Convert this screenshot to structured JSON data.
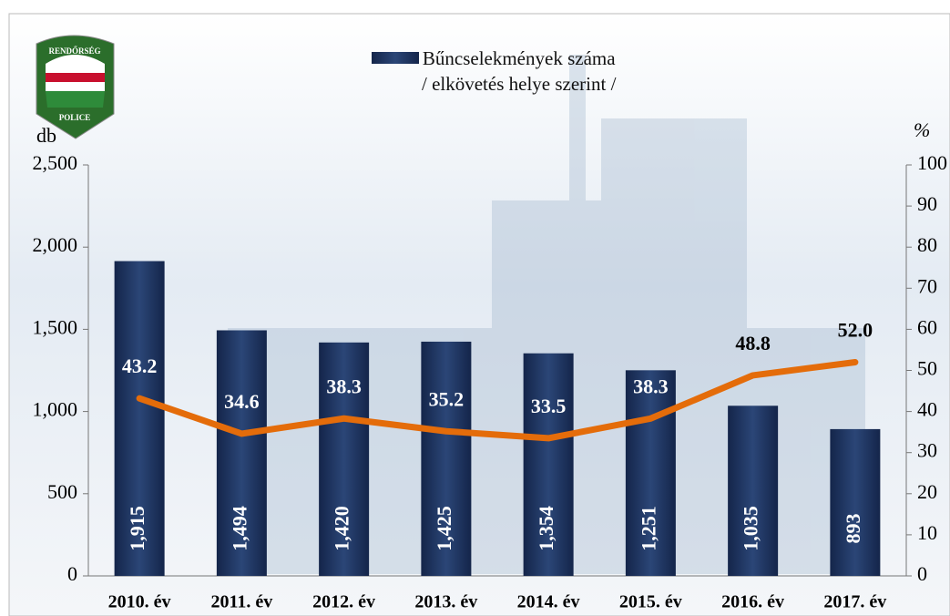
{
  "chart_data": {
    "type": "bar",
    "categories": [
      "2010. év",
      "2011. év",
      "2012. év",
      "2013. év",
      "2014. év",
      "2015. év",
      "2016. év",
      "2017. év"
    ],
    "series": [
      {
        "name": "Bűncselekmények száma\n/ elkövetés helye szerint /",
        "color": "#1f3864",
        "type": "bar",
        "values": [
          1915,
          1494,
          1420,
          1425,
          1354,
          1251,
          1035,
          893
        ],
        "value_labels": [
          "1,915",
          "1,494",
          "1,420",
          "1,425",
          "1,354",
          "1,251",
          "1,035",
          "893"
        ]
      },
      {
        "color": "#e46c0a",
        "type": "line",
        "axis": "y2",
        "values": [
          43.2,
          34.6,
          38.3,
          35.2,
          33.5,
          38.3,
          48.8,
          52.0
        ],
        "value_labels": [
          "43.2",
          "34.6",
          "38.3",
          "35.2",
          "33.5",
          "38.3",
          "48.8",
          "52.0"
        ]
      }
    ],
    "ylabel": "db",
    "y2label": "%",
    "ylim": [
      0,
      2500
    ],
    "yticks": [
      0,
      500,
      {
        "value": 1000,
        "label": "1,000"
      },
      {
        "value": 1500,
        "label": "1,500"
      },
      {
        "value": 2000,
        "label": "2,000"
      },
      {
        "value": 2500,
        "label": "2,500"
      }
    ],
    "y2lim": [
      0,
      100
    ],
    "y2ticks": [
      0,
      10,
      20,
      30,
      40,
      50,
      60,
      70,
      80,
      90,
      100
    ],
    "legend": "top"
  }
}
